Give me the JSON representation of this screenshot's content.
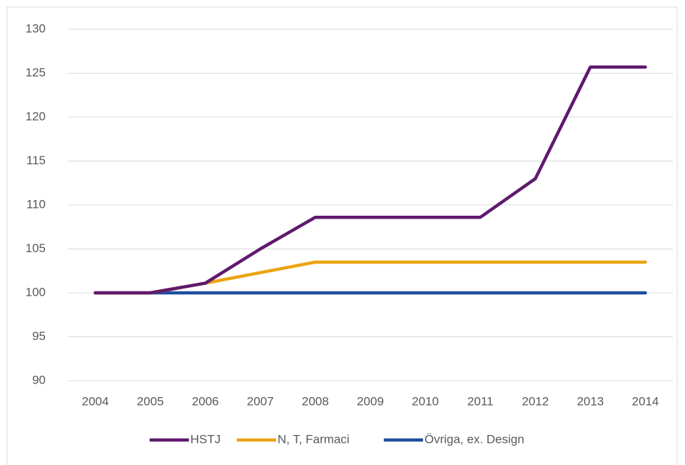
{
  "chart_data": {
    "type": "line",
    "categories": [
      "2004",
      "2005",
      "2006",
      "2007",
      "2008",
      "2009",
      "2010",
      "2011",
      "2012",
      "2013",
      "2014"
    ],
    "series": [
      {
        "name": "HSTJ",
        "color": "#60196e",
        "values": [
          100,
          100,
          101.1,
          105,
          108.6,
          108.6,
          108.6,
          108.6,
          113,
          125.7,
          125.7
        ]
      },
      {
        "name": "N, T, Farmaci",
        "color": "#eba412",
        "values": [
          100,
          100,
          101.1,
          102.3,
          103.5,
          103.5,
          103.5,
          103.5,
          103.5,
          103.5,
          103.5
        ]
      },
      {
        "name": "Övriga, ex. Design",
        "color": "#1f4e9e",
        "values": [
          100,
          100,
          100,
          100,
          100,
          100,
          100,
          100,
          100,
          100,
          100
        ]
      }
    ],
    "ylim": [
      90,
      130
    ],
    "yticks": [
      90,
      95,
      100,
      105,
      110,
      115,
      120,
      125,
      130
    ],
    "grid": true,
    "legend": "bottom"
  }
}
